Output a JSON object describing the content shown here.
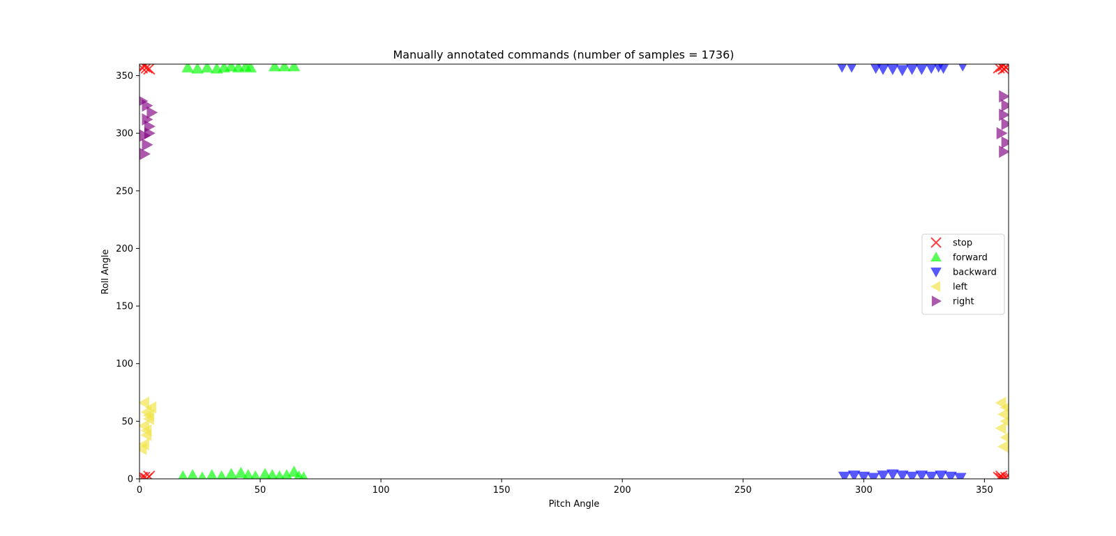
{
  "chart_data": {
    "type": "scatter",
    "title": "Manually annotated commands (number of samples = 1736)",
    "xlabel": "Pitch Angle",
    "ylabel": "Roll Angle",
    "xlim": [
      0,
      360
    ],
    "ylim": [
      0,
      360
    ],
    "xticks": [
      0,
      50,
      100,
      150,
      200,
      250,
      300,
      350
    ],
    "yticks": [
      0,
      50,
      100,
      150,
      200,
      250,
      300,
      350
    ],
    "grid": false,
    "legend_position": "right",
    "series": [
      {
        "name": "stop",
        "marker": "x",
        "color": "#ff0000",
        "points": [
          [
            1,
            1
          ],
          [
            2,
            1
          ],
          [
            4,
            2
          ],
          [
            3,
            0
          ],
          [
            1,
            357
          ],
          [
            2,
            358
          ],
          [
            3,
            357
          ],
          [
            4,
            356
          ],
          [
            356,
            1
          ],
          [
            357,
            2
          ],
          [
            358,
            0
          ],
          [
            359,
            1
          ],
          [
            357,
            0
          ],
          [
            356,
            357
          ],
          [
            357,
            358
          ],
          [
            358,
            359
          ],
          [
            359,
            357
          ],
          [
            358,
            356
          ]
        ]
      },
      {
        "name": "forward",
        "marker": "triangle-up",
        "color": "#00ff00",
        "points": [
          [
            18,
            2
          ],
          [
            22,
            3
          ],
          [
            26,
            1
          ],
          [
            30,
            3
          ],
          [
            34,
            2
          ],
          [
            38,
            4
          ],
          [
            42,
            5
          ],
          [
            45,
            3
          ],
          [
            48,
            2
          ],
          [
            52,
            4
          ],
          [
            55,
            3
          ],
          [
            58,
            2
          ],
          [
            61,
            3
          ],
          [
            64,
            6
          ],
          [
            66,
            2
          ],
          [
            68,
            1
          ],
          [
            20,
            357
          ],
          [
            24,
            356
          ],
          [
            28,
            357
          ],
          [
            32,
            356
          ],
          [
            35,
            357
          ],
          [
            38,
            358
          ],
          [
            41,
            357
          ],
          [
            44,
            358
          ],
          [
            46,
            357
          ],
          [
            56,
            358
          ],
          [
            60,
            358
          ],
          [
            64,
            358
          ]
        ]
      },
      {
        "name": "backward",
        "marker": "triangle-down",
        "color": "#0000ff",
        "points": [
          [
            292,
            2
          ],
          [
            296,
            3
          ],
          [
            300,
            2
          ],
          [
            304,
            1
          ],
          [
            308,
            3
          ],
          [
            312,
            4
          ],
          [
            316,
            3
          ],
          [
            320,
            2
          ],
          [
            324,
            3
          ],
          [
            328,
            2
          ],
          [
            332,
            3
          ],
          [
            336,
            2
          ],
          [
            340,
            1
          ],
          [
            291,
            358
          ],
          [
            295,
            358
          ],
          [
            305,
            357
          ],
          [
            308,
            356
          ],
          [
            312,
            356
          ],
          [
            316,
            355
          ],
          [
            320,
            356
          ],
          [
            324,
            356
          ],
          [
            328,
            357
          ],
          [
            331,
            358
          ],
          [
            333,
            357
          ],
          [
            341,
            359
          ]
        ]
      },
      {
        "name": "left",
        "marker": "triangle-left",
        "color": "#f0e442",
        "points": [
          [
            2,
            30
          ],
          [
            3,
            38
          ],
          [
            2,
            46
          ],
          [
            4,
            52
          ],
          [
            3,
            58
          ],
          [
            5,
            62
          ],
          [
            2,
            66
          ],
          [
            4,
            55
          ],
          [
            3,
            42
          ],
          [
            1,
            26
          ],
          [
            358,
            28
          ],
          [
            359,
            36
          ],
          [
            357,
            44
          ],
          [
            359,
            50
          ],
          [
            358,
            56
          ],
          [
            359,
            62
          ],
          [
            357,
            66
          ]
        ]
      },
      {
        "name": "right",
        "marker": "triangle-right",
        "color": "#800080",
        "points": [
          [
            2,
            282
          ],
          [
            3,
            290
          ],
          [
            2,
            298
          ],
          [
            4,
            306
          ],
          [
            3,
            312
          ],
          [
            5,
            318
          ],
          [
            3,
            324
          ],
          [
            1,
            328
          ],
          [
            4,
            300
          ],
          [
            358,
            284
          ],
          [
            359,
            292
          ],
          [
            357,
            300
          ],
          [
            359,
            308
          ],
          [
            358,
            316
          ],
          [
            359,
            324
          ],
          [
            358,
            332
          ]
        ]
      }
    ]
  }
}
